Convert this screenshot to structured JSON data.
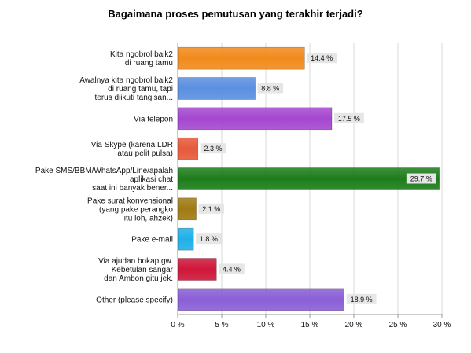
{
  "chart_data": {
    "type": "bar",
    "orientation": "horizontal",
    "title": "Bagaimana proses pemutusan yang terakhir terjadi?",
    "categories": [
      [
        "Kita ngobrol baik2",
        "di ruang tamu"
      ],
      [
        "Awalnya kita ngobrol baik2",
        "di ruang tamu, tapi",
        "terus diikuti tangisan..."
      ],
      [
        "Via telepon"
      ],
      [
        "Via Skype (karena LDR",
        "atau pelit pulsa)"
      ],
      [
        "Pake SMS/BBM/WhatsApp/Line/apalah",
        "aplikasi chat",
        "saat ini banyak bener..."
      ],
      [
        "Pake surat konvensional",
        "(yang pake perangko",
        "itu loh, ahzek)"
      ],
      [
        "Pake e-mail"
      ],
      [
        "Via ajudan bokap gw.",
        "Kebetulan sangar",
        "dan Ambon gitu jek."
      ],
      [
        "Other (please specify)"
      ]
    ],
    "values": [
      14.4,
      8.8,
      17.5,
      2.3,
      29.7,
      2.1,
      1.8,
      4.4,
      18.9
    ],
    "value_labels": [
      "14.4 %",
      "8.8 %",
      "17.5 %",
      "2.3 %",
      "29.7 %",
      "2.1 %",
      "1.8 %",
      "4.4 %",
      "18.9 %"
    ],
    "colors": [
      "#f28a1c",
      "#5b8fe0",
      "#a548cf",
      "#e65a3c",
      "#1d7d1a",
      "#a07a12",
      "#1fb0e8",
      "#d0163a",
      "#8a5fd6"
    ],
    "xlim": [
      0,
      30
    ],
    "xticks": [
      0,
      5,
      10,
      15,
      20,
      25,
      30
    ],
    "xtick_labels": [
      "0 %",
      "5 %",
      "10 %",
      "15 %",
      "20 %",
      "25 %",
      "30 %"
    ],
    "grid": true,
    "legend": "none"
  }
}
